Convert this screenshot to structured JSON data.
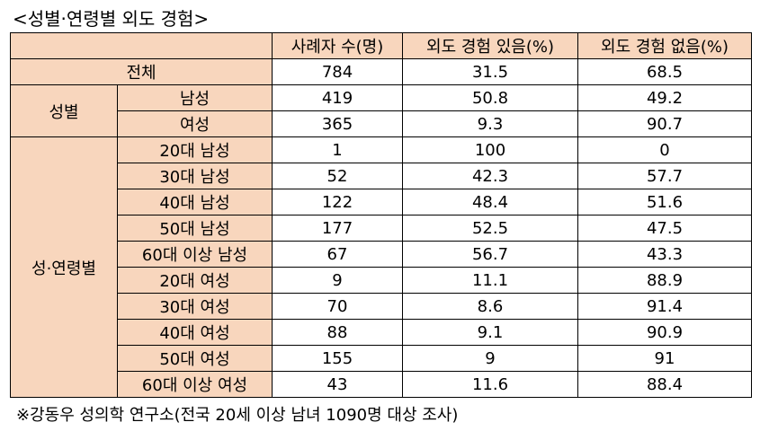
{
  "title": "<성별·연령별 외도 경험>",
  "table": {
    "headers": [
      "사례자 수(명)",
      "외도 경험 있음(%)",
      "외도 경험 없음(%)"
    ],
    "total": {
      "label": "전체",
      "n": "784",
      "yes": "31.5",
      "no": "68.5"
    },
    "gender_group_label": "성별",
    "gender_rows": [
      {
        "label": "남성",
        "n": "419",
        "yes": "50.8",
        "no": "49.2"
      },
      {
        "label": "여성",
        "n": "365",
        "yes": "9.3",
        "no": "90.7"
      }
    ],
    "age_group_label": "성·연령별",
    "age_rows": [
      {
        "label": "20대 남성",
        "n": "1",
        "yes": "100",
        "no": "0"
      },
      {
        "label": "30대 남성",
        "n": "52",
        "yes": "42.3",
        "no": "57.7"
      },
      {
        "label": "40대 남성",
        "n": "122",
        "yes": "48.4",
        "no": "51.6"
      },
      {
        "label": "50대 남성",
        "n": "177",
        "yes": "52.5",
        "no": "47.5"
      },
      {
        "label": "60대 이상 남성",
        "n": "67",
        "yes": "56.7",
        "no": "43.3"
      },
      {
        "label": "20대 여성",
        "n": "9",
        "yes": "11.1",
        "no": "88.9"
      },
      {
        "label": "30대 여성",
        "n": "70",
        "yes": "8.6",
        "no": "91.4"
      },
      {
        "label": "40대 여성",
        "n": "88",
        "yes": "9.1",
        "no": "90.9"
      },
      {
        "label": "50대 여성",
        "n": "155",
        "yes": "9",
        "no": "91"
      },
      {
        "label": "60대 이상 여성",
        "n": "43",
        "yes": "11.6",
        "no": "88.4"
      }
    ]
  },
  "footnote": "※강동우 성의학 연구소(전국 20세 이상 남녀 1090명 대상 조사)",
  "colors": {
    "header_fill": "#f8d6bd",
    "border": "#000000"
  }
}
